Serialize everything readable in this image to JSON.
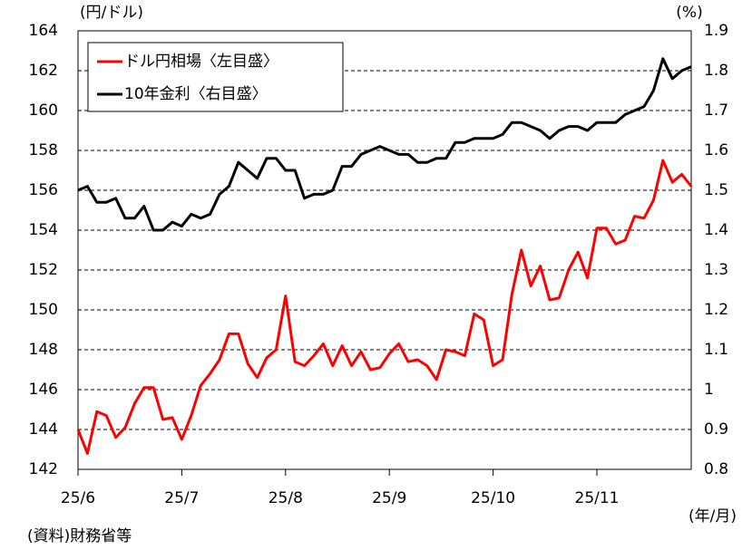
{
  "chart_data": {
    "type": "line",
    "y_label": "(円/ドル)",
    "y2_label": "(%)",
    "x_label": "(年/月)",
    "source": "(資料)財務省等",
    "categories": [
      "25/6",
      null,
      null,
      null,
      null,
      null,
      null,
      null,
      null,
      null,
      null,
      "25/7",
      null,
      null,
      null,
      null,
      null,
      null,
      null,
      null,
      null,
      null,
      "25/8",
      null,
      null,
      null,
      null,
      null,
      null,
      null,
      null,
      null,
      null,
      "25/9",
      null,
      null,
      null,
      null,
      null,
      null,
      null,
      null,
      null,
      null,
      "25/10",
      null,
      null,
      null,
      null,
      null,
      null,
      null,
      null,
      null,
      null,
      "25/11",
      null,
      null,
      null,
      null,
      null,
      null,
      null,
      null,
      null,
      null
    ],
    "series": [
      {
        "name": "ドル円相場〈左目盛〉",
        "color": "#ff0000",
        "axis": "y",
        "values": [
          144.0,
          142.8,
          144.9,
          144.7,
          143.6,
          144.1,
          145.3,
          146.1,
          146.1,
          144.5,
          144.6,
          143.5,
          144.7,
          146.2,
          146.8,
          147.5,
          148.8,
          148.8,
          147.3,
          146.6,
          147.6,
          148.0,
          150.7,
          147.4,
          147.2,
          147.7,
          148.3,
          147.2,
          148.2,
          147.2,
          147.9,
          147.0,
          147.1,
          147.8,
          148.3,
          147.4,
          147.5,
          147.2,
          146.5,
          148.0,
          147.9,
          147.7,
          149.8,
          149.5,
          147.2,
          147.5,
          150.8,
          153.0,
          151.2,
          152.2,
          150.5,
          150.6,
          152.0,
          152.9,
          151.6,
          154.1,
          154.1,
          153.3,
          153.5,
          154.7,
          154.6,
          155.5,
          157.5,
          156.4,
          156.8,
          156.2
        ]
      },
      {
        "name": "10年金利〈右目盛〉",
        "color": "#000000",
        "axis": "y2",
        "values": [
          1.5,
          1.51,
          1.47,
          1.47,
          1.48,
          1.43,
          1.43,
          1.46,
          1.4,
          1.4,
          1.42,
          1.41,
          1.44,
          1.43,
          1.44,
          1.49,
          1.51,
          1.57,
          1.55,
          1.53,
          1.58,
          1.58,
          1.55,
          1.55,
          1.48,
          1.49,
          1.49,
          1.5,
          1.56,
          1.56,
          1.59,
          1.6,
          1.61,
          1.6,
          1.59,
          1.59,
          1.57,
          1.57,
          1.58,
          1.58,
          1.62,
          1.62,
          1.63,
          1.63,
          1.63,
          1.64,
          1.67,
          1.67,
          1.66,
          1.65,
          1.63,
          1.65,
          1.66,
          1.66,
          1.65,
          1.67,
          1.67,
          1.67,
          1.69,
          1.7,
          1.71,
          1.75,
          1.83,
          1.78,
          1.8,
          1.81
        ]
      }
    ],
    "ylim": [
      142,
      164
    ],
    "yticks": [
      142,
      144,
      146,
      148,
      150,
      152,
      154,
      156,
      158,
      160,
      162,
      164
    ],
    "y2lim": [
      0.8,
      1.9
    ],
    "y2ticks": [
      0.8,
      0.9,
      1,
      1.1,
      1.2,
      1.3,
      1.4,
      1.5,
      1.6,
      1.7,
      1.8,
      1.9
    ],
    "grid": true
  }
}
